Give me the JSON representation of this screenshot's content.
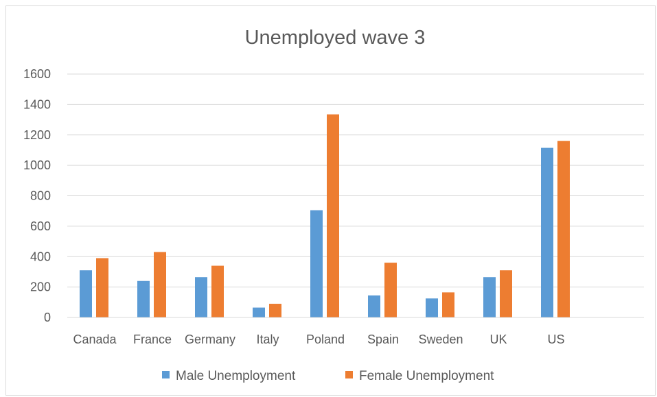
{
  "chart_data": {
    "type": "bar",
    "title": "Unemployed wave 3",
    "xlabel": "",
    "ylabel": "",
    "categories": [
      "Canada",
      "France",
      "Germany",
      "Italy",
      "Poland",
      "Spain",
      "Sweden",
      "UK",
      "US"
    ],
    "series": [
      {
        "name": "Male Unemployment",
        "color": "#5b9bd5",
        "values": [
          310,
          240,
          265,
          65,
          705,
          145,
          125,
          265,
          1115
        ]
      },
      {
        "name": "Female Unemployment",
        "color": "#ed7d31",
        "values": [
          390,
          430,
          340,
          90,
          1335,
          360,
          165,
          310,
          1160
        ]
      }
    ],
    "ylim": [
      0,
      1600
    ],
    "yticks": [
      0,
      200,
      400,
      600,
      800,
      1000,
      1200,
      1400,
      1600
    ],
    "grid": true,
    "legend": "bottom"
  }
}
